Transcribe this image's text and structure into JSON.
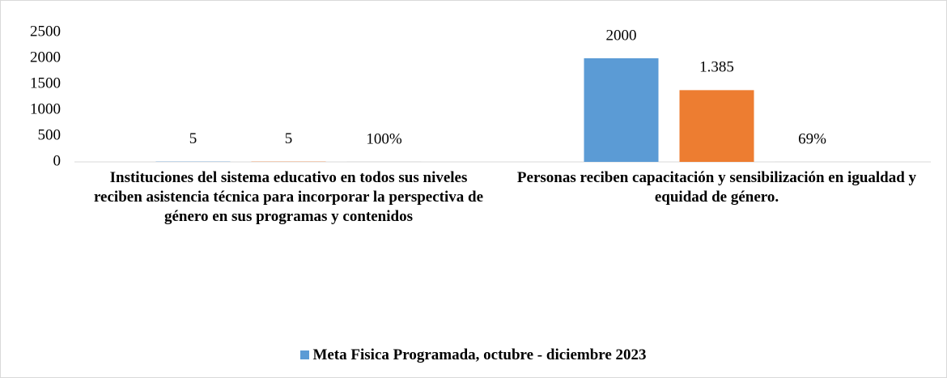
{
  "chart_data": {
    "type": "bar",
    "categories": [
      "Instituciones del sistema educativo en todos sus niveles reciben asistencia técnica para incorporar la perspectiva de género en sus programas y contenidos",
      "Personas reciben capacitación y sensibilización en igualdad y equidad de género."
    ],
    "series": [
      {
        "name": "Meta Fisica Programada, octubre - diciembre 2023",
        "color": "#5b9bd5",
        "values": [
          5,
          2000
        ]
      },
      {
        "color": "#ed7d31",
        "values": [
          5,
          1385
        ],
        "value_labels": [
          "5",
          "1.385"
        ]
      },
      {
        "color": "#a5a5a5",
        "values": [
          1,
          0.69
        ],
        "value_labels": [
          "100%",
          "69%"
        ]
      }
    ],
    "ylim": [
      0,
      2500
    ],
    "yticks": [
      0,
      500,
      1000,
      1500,
      2000,
      2500
    ],
    "grid": false,
    "legend": "bottom"
  }
}
